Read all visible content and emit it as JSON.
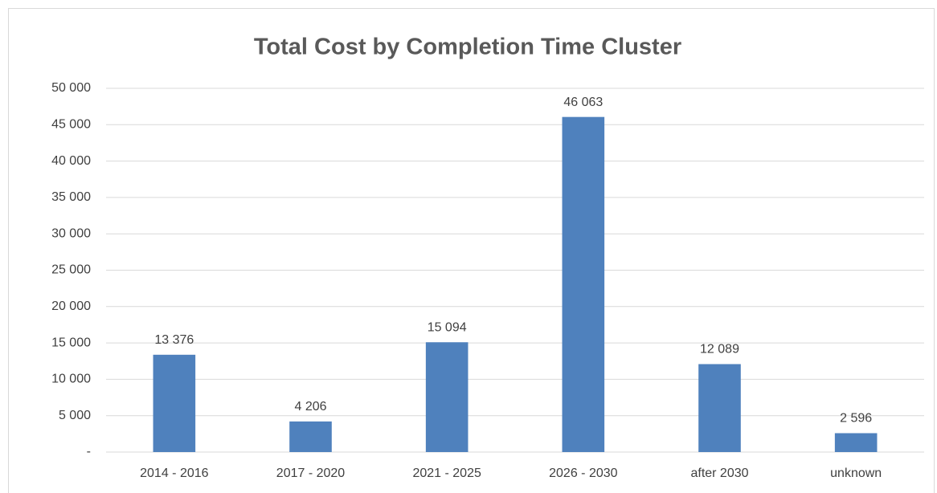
{
  "chart_data": {
    "type": "bar",
    "title": "Total Cost by Completion Time Cluster",
    "categories": [
      "2014 - 2016",
      "2017 - 2020",
      "2021 - 2025",
      "2026 - 2030",
      "after 2030",
      "unknown"
    ],
    "values": [
      13376,
      4206,
      15094,
      46063,
      12089,
      2596
    ],
    "value_labels": [
      "13 376",
      "4 206",
      "15 094",
      "46 063",
      "12 089",
      "2 596"
    ],
    "color": "#4f81bd",
    "ylim": [
      0,
      50000
    ],
    "yticks": [
      {
        "value": 0,
        "label": "-"
      },
      {
        "value": 5000,
        "label": "5 000"
      },
      {
        "value": 10000,
        "label": "10 000"
      },
      {
        "value": 15000,
        "label": "15 000"
      },
      {
        "value": 20000,
        "label": "20 000"
      },
      {
        "value": 25000,
        "label": "25 000"
      },
      {
        "value": 30000,
        "label": "30 000"
      },
      {
        "value": 35000,
        "label": "35 000"
      },
      {
        "value": 40000,
        "label": "40 000"
      },
      {
        "value": 45000,
        "label": "45 000"
      },
      {
        "value": 50000,
        "label": "50 000"
      }
    ],
    "grid": true
  }
}
